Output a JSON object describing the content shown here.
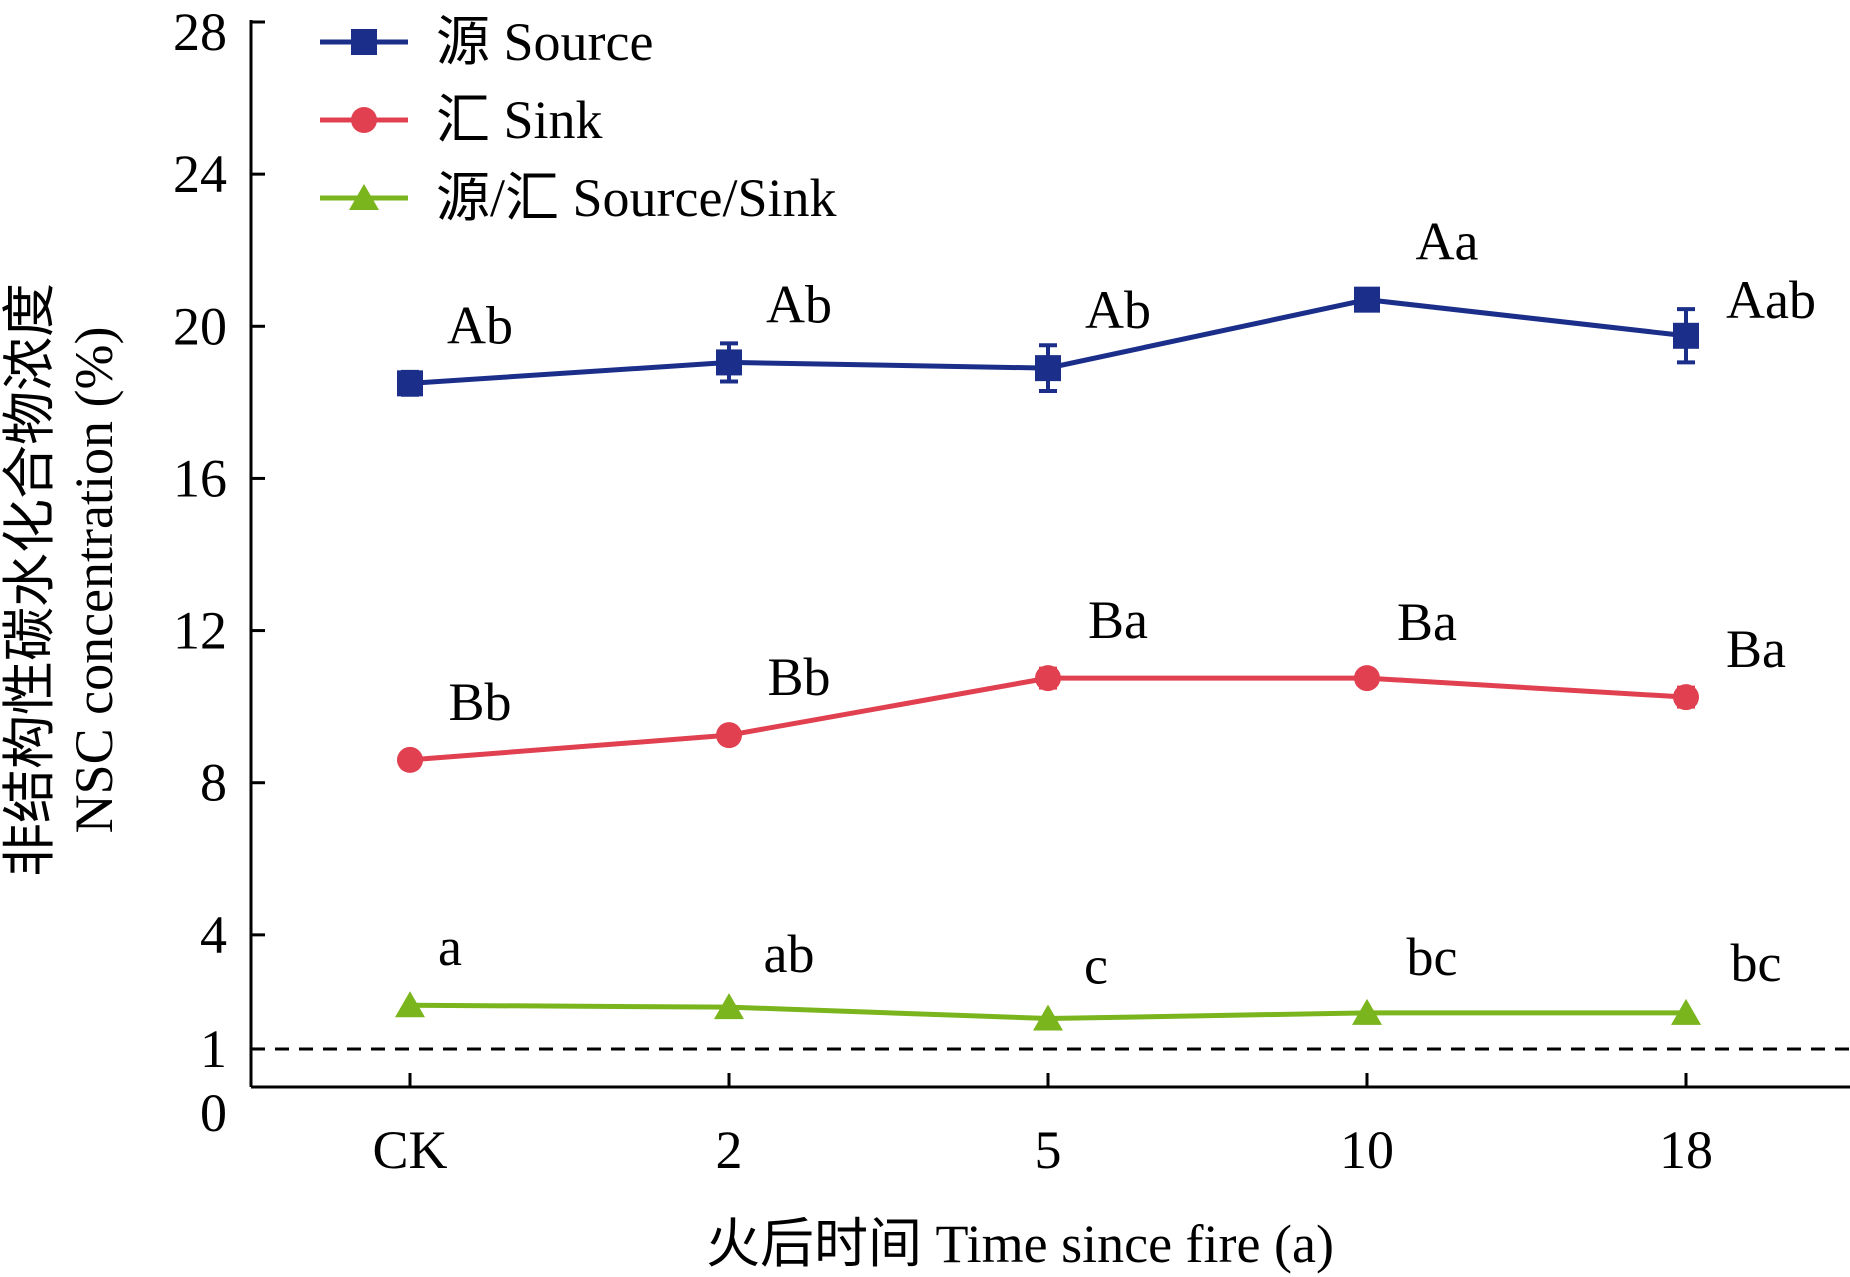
{
  "chart_data": {
    "type": "line",
    "xlabel": "火后时间 Time since fire (a)",
    "ylabel_cn": "非结构性碳水化合物浓度",
    "ylabel_en": "NSC concentration (%)",
    "categories": [
      "CK",
      "2",
      "5",
      "10",
      "18"
    ],
    "ylim": [
      0,
      28
    ],
    "yticks": [
      0,
      1,
      4,
      8,
      12,
      16,
      20,
      24,
      28
    ],
    "reference_line": 1,
    "grid": false,
    "legend_position": "top-left",
    "series": [
      {
        "name": "源 Source",
        "color": "#1b2f8a",
        "marker": "square",
        "values": [
          18.5,
          19.05,
          18.9,
          20.7,
          19.75
        ],
        "errors": [
          0.3,
          0.5,
          0.6,
          0.2,
          0.7
        ],
        "labels": [
          "Ab",
          "Ab",
          "Ab",
          "Aa",
          "Aab"
        ]
      },
      {
        "name": "汇 Sink",
        "color": "#e0404f",
        "marker": "circle",
        "values": [
          8.6,
          9.25,
          10.75,
          10.75,
          10.25
        ],
        "errors": [
          0.15,
          0.2,
          0.25,
          0.15,
          0.25
        ],
        "labels": [
          "Bb",
          "Bb",
          "Ba",
          "Ba",
          "Ba"
        ]
      },
      {
        "name": "源/汇 Source/Sink",
        "color": "#7ab51d",
        "marker": "triangle",
        "values": [
          2.15,
          2.1,
          1.8,
          1.95,
          1.95
        ],
        "errors": [
          0.05,
          0.05,
          0.05,
          0.05,
          0.05
        ],
        "labels": [
          "a",
          "ab",
          "c",
          "bc",
          "bc"
        ]
      }
    ]
  }
}
